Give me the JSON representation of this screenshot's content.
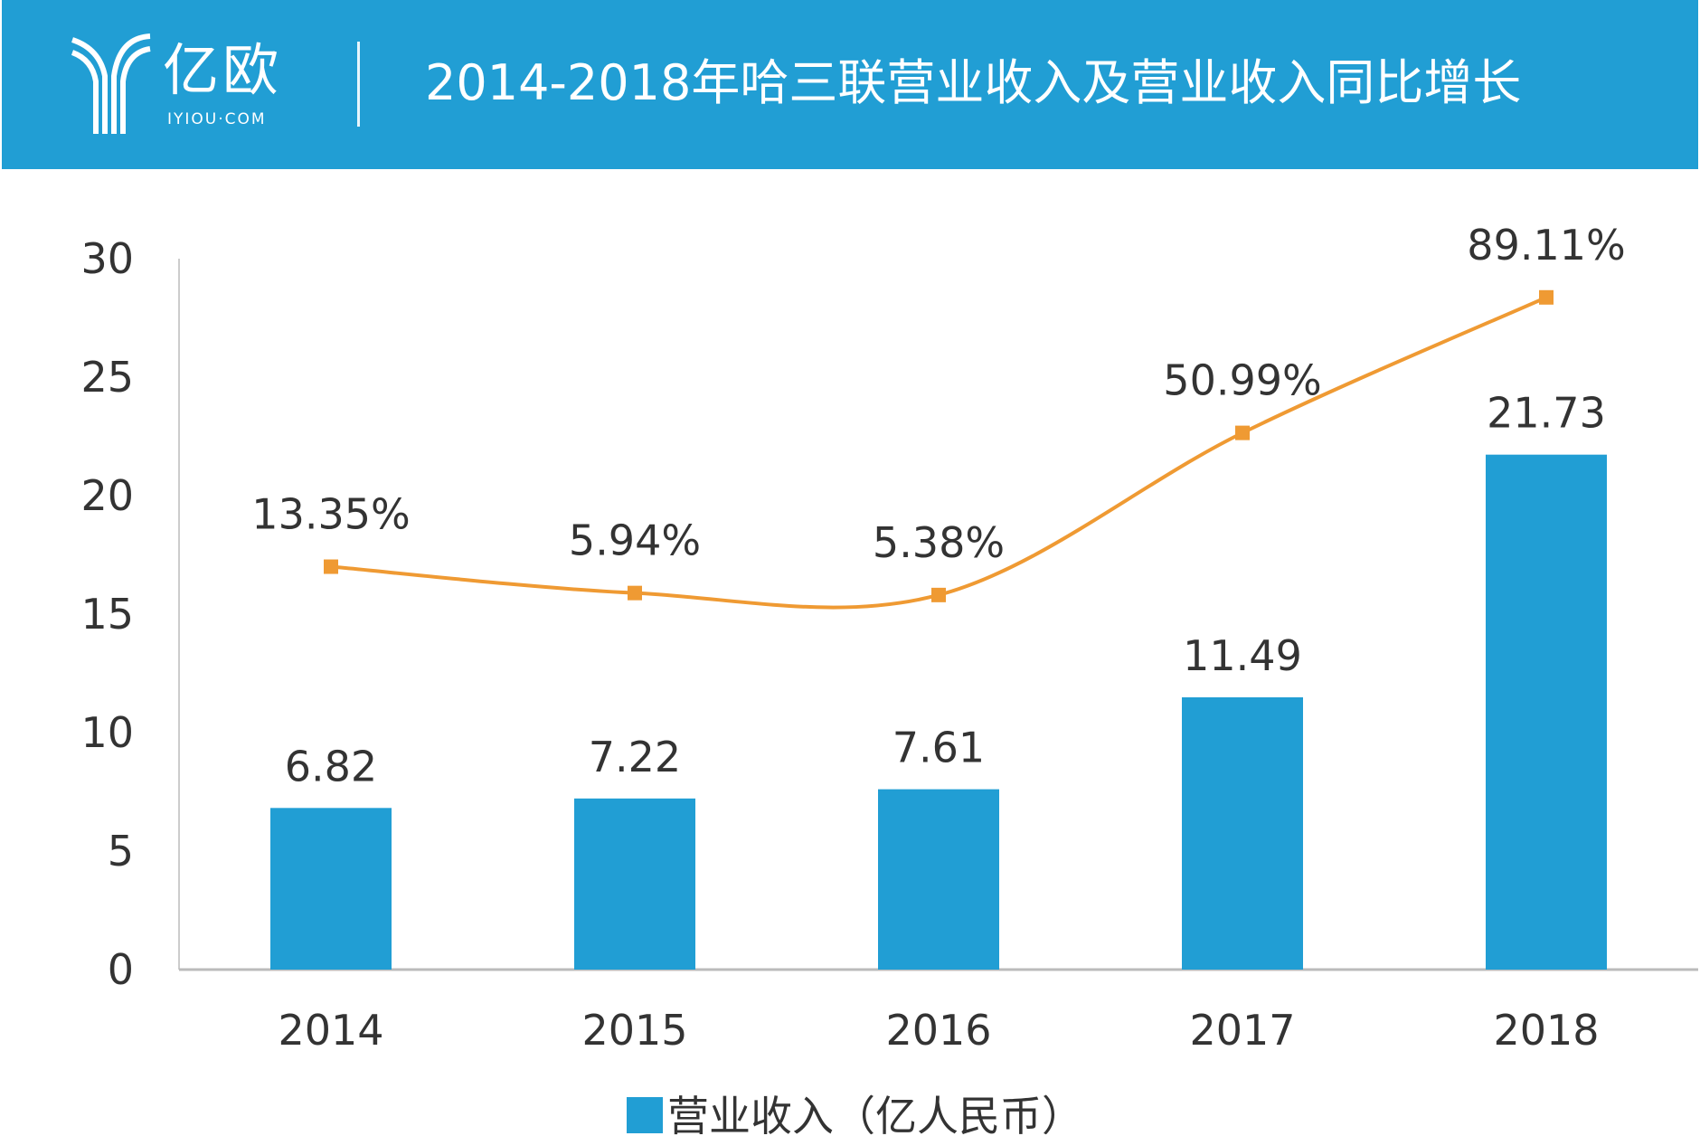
{
  "header": {
    "logo_cn": "亿欧",
    "logo_en": "IYIOU·COM",
    "title": "2014-2018年哈三联营业收入及营业收入同比增长"
  },
  "colors": {
    "header": "#219ed4",
    "bar": "#219ed4",
    "line": "#ef9a33"
  },
  "chart_data": {
    "type": "bar+line",
    "title": "2014-2018年哈三联营业收入及营业收入同比增长",
    "categories": [
      "2014",
      "2015",
      "2016",
      "2017",
      "2018"
    ],
    "ylim": [
      0,
      30
    ],
    "yticks": [
      0,
      5,
      10,
      15,
      20,
      25,
      30
    ],
    "y2lim": [
      -100,
      100
    ],
    "series": [
      {
        "name": "营业收入（亿人民币）",
        "type": "bar",
        "values": [
          6.82,
          7.22,
          7.61,
          11.49,
          21.73
        ],
        "labels": [
          "6.82",
          "7.22",
          "7.61",
          "11.49",
          "21.73"
        ]
      },
      {
        "name": "营业收入同比增长",
        "type": "line",
        "axis": "secondary",
        "values": [
          13.35,
          5.94,
          5.38,
          50.99,
          89.11
        ],
        "labels": [
          "13.35%",
          "5.94%",
          "5.38%",
          "50.99%",
          "89.11%"
        ]
      }
    ],
    "legend": {
      "position": "bottom",
      "entries": [
        "营业收入（亿人民币）"
      ]
    }
  }
}
